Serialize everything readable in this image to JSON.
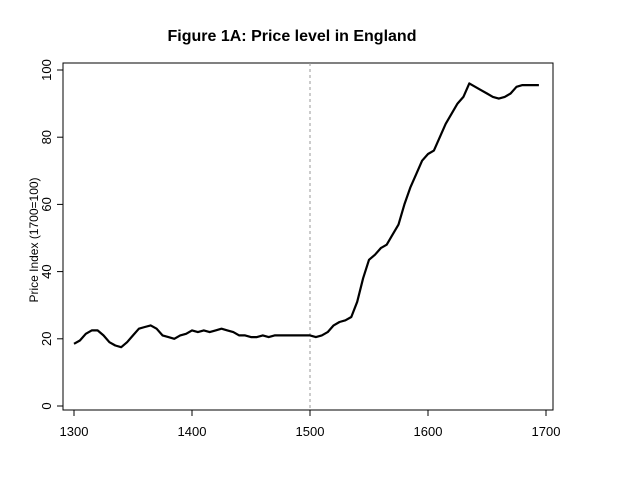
{
  "chart_data": {
    "type": "line",
    "title": "Figure 1A: Price level in England",
    "xlabel": "",
    "ylabel": "Price Index (1700=100)",
    "xlim": [
      1300,
      1700
    ],
    "ylim": [
      0,
      100
    ],
    "xticks": [
      1300,
      1400,
      1500,
      1600,
      1700
    ],
    "yticks": [
      0,
      20,
      40,
      60,
      80,
      100
    ],
    "grid": false,
    "reference_lines": [
      {
        "axis": "x",
        "value": 1500,
        "style": "dashed",
        "color": "#999999"
      }
    ],
    "series": [
      {
        "color": "#000000",
        "x": [
          1300,
          1305,
          1310,
          1315,
          1320,
          1325,
          1330,
          1335,
          1340,
          1345,
          1350,
          1355,
          1360,
          1365,
          1370,
          1375,
          1380,
          1385,
          1390,
          1395,
          1400,
          1405,
          1410,
          1415,
          1420,
          1425,
          1430,
          1435,
          1440,
          1445,
          1450,
          1455,
          1460,
          1465,
          1470,
          1475,
          1480,
          1485,
          1490,
          1495,
          1500,
          1505,
          1510,
          1515,
          1520,
          1525,
          1530,
          1535,
          1540,
          1545,
          1550,
          1555,
          1560,
          1565,
          1570,
          1575,
          1580,
          1585,
          1590,
          1595,
          1600,
          1605,
          1610,
          1615,
          1620,
          1625,
          1630,
          1635,
          1640,
          1645,
          1650,
          1655,
          1660,
          1665,
          1670,
          1675,
          1680,
          1685,
          1690,
          1694
        ],
        "values": [
          18.5,
          19.5,
          21.5,
          22.5,
          22.5,
          21,
          19,
          18,
          17.5,
          19,
          21,
          23,
          23.5,
          24,
          23,
          21,
          20.5,
          20,
          21,
          21.5,
          22.5,
          22,
          22.5,
          22,
          22.5,
          23,
          22.5,
          22,
          21,
          21,
          20.5,
          20.5,
          21,
          20.5,
          21,
          21,
          21,
          21,
          21,
          21,
          21,
          20.5,
          21,
          22,
          24,
          25,
          25.5,
          26.5,
          31,
          38,
          43.5,
          45,
          47,
          48,
          51,
          54,
          60,
          65,
          69,
          73,
          75,
          76,
          80,
          84,
          87,
          90,
          92,
          96,
          95,
          94,
          93,
          92,
          91.5,
          92,
          93,
          95,
          95.5,
          95.5,
          95.5,
          95.5
        ]
      }
    ]
  }
}
